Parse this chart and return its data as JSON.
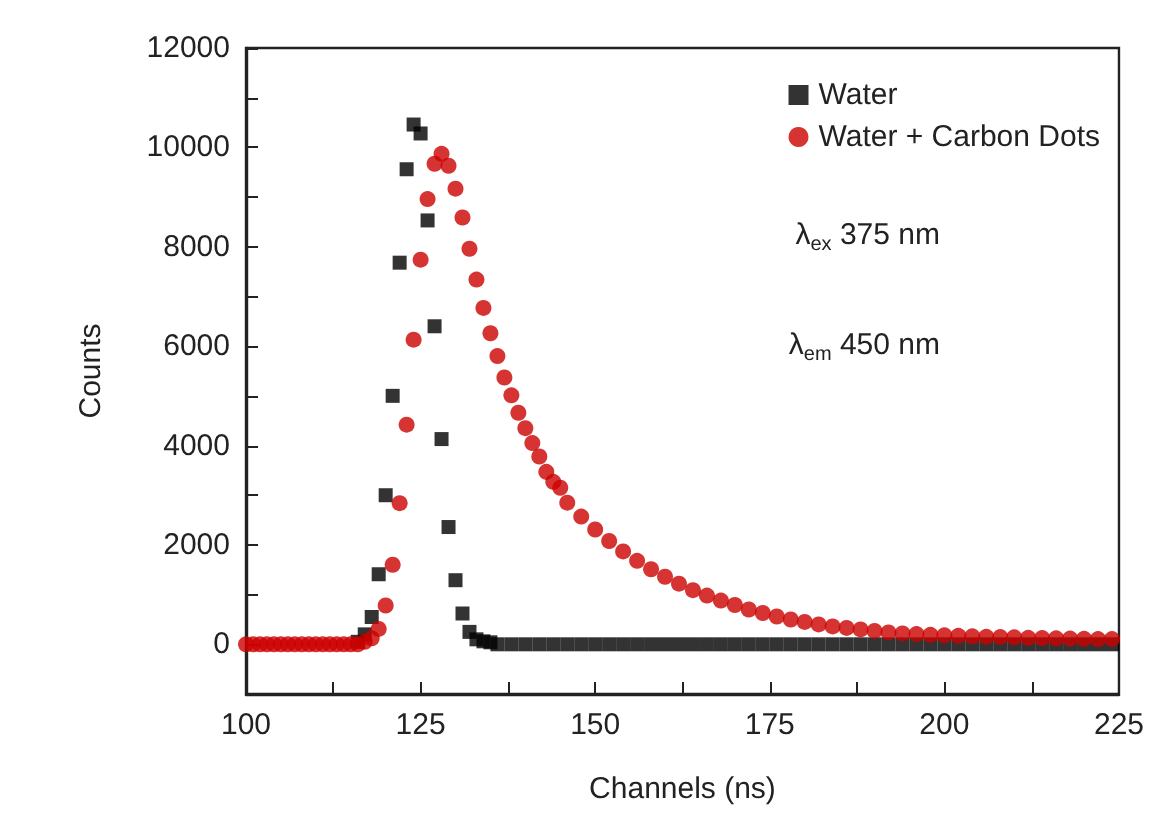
{
  "chart_data": {
    "type": "scatter",
    "xlabel": "Channels (ns)",
    "ylabel": "Counts",
    "xlim": [
      100,
      225
    ],
    "xticks": [
      100,
      125,
      150,
      175,
      200,
      225
    ],
    "ylim": [
      -1000,
      12000
    ],
    "yticks": [
      0,
      2000,
      4000,
      6000,
      8000,
      10000,
      12000
    ],
    "grid": false,
    "legend": "top right",
    "annotations": [
      "λ$_{ex}$ 375 nm",
      "λ$_{em}$ 450 nm"
    ],
    "series": [
      {
        "name": "Water",
        "color": "#000000",
        "marker": "square",
        "x": [
          116,
          117,
          118,
          119,
          120,
          121,
          122,
          123,
          124,
          125,
          126,
          127,
          128,
          129,
          130,
          131,
          132,
          133,
          134,
          135,
          136,
          138,
          140,
          142,
          144,
          146,
          148,
          150,
          152,
          154,
          156,
          158,
          160,
          162,
          164,
          166,
          168,
          170,
          172,
          174,
          176,
          178,
          180,
          182,
          184,
          186,
          188,
          190,
          192,
          194,
          196,
          198,
          200,
          202,
          204,
          206,
          208,
          210,
          212,
          214,
          216,
          218,
          220,
          222,
          224
        ],
        "values": [
          50,
          200,
          550,
          1410,
          3000,
          5000,
          7680,
          9560,
          10460,
          10280,
          8530,
          6400,
          4130,
          2360,
          1290,
          620,
          250,
          100,
          60,
          40,
          0,
          0,
          0,
          0,
          0,
          0,
          0,
          0,
          0,
          0,
          0,
          0,
          0,
          0,
          0,
          0,
          0,
          0,
          0,
          0,
          0,
          0,
          0,
          0,
          0,
          0,
          0,
          0,
          0,
          0,
          0,
          0,
          0,
          0,
          0,
          0,
          0,
          0,
          0,
          0,
          0,
          0,
          0,
          0,
          0
        ]
      },
      {
        "name": "Water + Carbon Dots",
        "color": "#cc0000",
        "marker": "circle",
        "x": [
          100,
          101,
          102,
          103,
          104,
          105,
          106,
          107,
          108,
          109,
          110,
          111,
          112,
          113,
          114,
          115,
          116,
          117,
          118,
          119,
          120,
          121,
          122,
          123,
          124,
          125,
          126,
          127,
          128,
          129,
          130,
          131,
          132,
          133,
          134,
          135,
          136,
          137,
          138,
          139,
          140,
          141,
          142,
          143,
          144,
          145,
          146,
          148,
          150,
          152,
          154,
          156,
          158,
          160,
          162,
          164,
          166,
          168,
          170,
          172,
          174,
          176,
          178,
          180,
          182,
          184,
          186,
          188,
          190,
          192,
          194,
          196,
          198,
          200,
          202,
          204,
          206,
          208,
          210,
          212,
          214,
          216,
          218,
          220,
          222,
          224
        ],
        "values": [
          0,
          0,
          0,
          0,
          0,
          0,
          0,
          0,
          0,
          0,
          0,
          0,
          0,
          0,
          0,
          0,
          0,
          50,
          120,
          310,
          780,
          1600,
          2840,
          4420,
          6130,
          7740,
          8960,
          9670,
          9870,
          9630,
          9170,
          8590,
          7960,
          7340,
          6770,
          6260,
          5800,
          5370,
          5010,
          4660,
          4350,
          4050,
          3780,
          3470,
          3270,
          3150,
          2850,
          2570,
          2310,
          2080,
          1870,
          1680,
          1510,
          1360,
          1220,
          1090,
          980,
          880,
          790,
          700,
          630,
          560,
          500,
          450,
          400,
          360,
          330,
          300,
          270,
          240,
          220,
          205,
          190,
          180,
          170,
          160,
          150,
          145,
          140,
          130,
          125,
          120,
          115,
          110,
          105,
          105
        ]
      }
    ]
  }
}
